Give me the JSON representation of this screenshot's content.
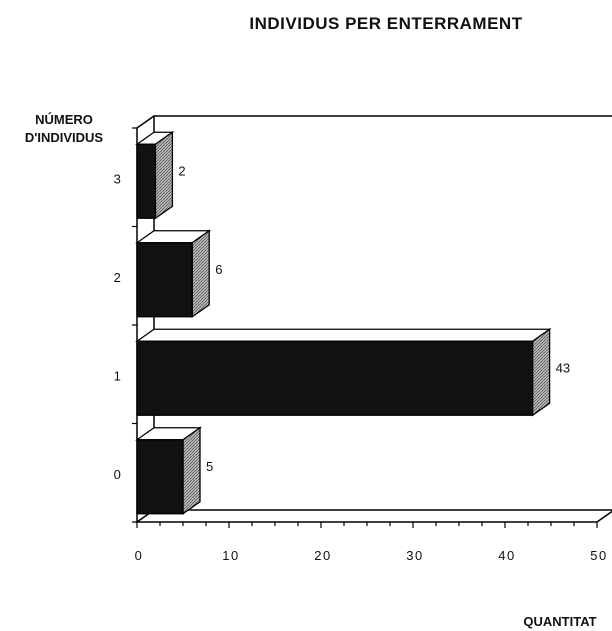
{
  "chart_data": {
    "type": "bar",
    "orientation": "horizontal",
    "style": "3d",
    "title": "INDIVIDUS PER ENTERRAMENT",
    "ylabel_line1": "NÚMERO",
    "ylabel_line2": "D'INDIVIDUS",
    "xlabel": "QUANTITAT",
    "categories": [
      "0",
      "1",
      "2",
      "3"
    ],
    "values": [
      5,
      43,
      6,
      2
    ],
    "data_labels": [
      "5",
      "43",
      "6",
      "2"
    ],
    "xlim": [
      0,
      50
    ],
    "x_ticks": [
      "0",
      "10",
      "20",
      "30",
      "40",
      "50"
    ],
    "grid": false,
    "legend": "none",
    "colors": {
      "bar_front": "#111111",
      "bar_top": "#ffffff",
      "bar_side": "#9a9a9a",
      "outline": "#000000"
    }
  }
}
